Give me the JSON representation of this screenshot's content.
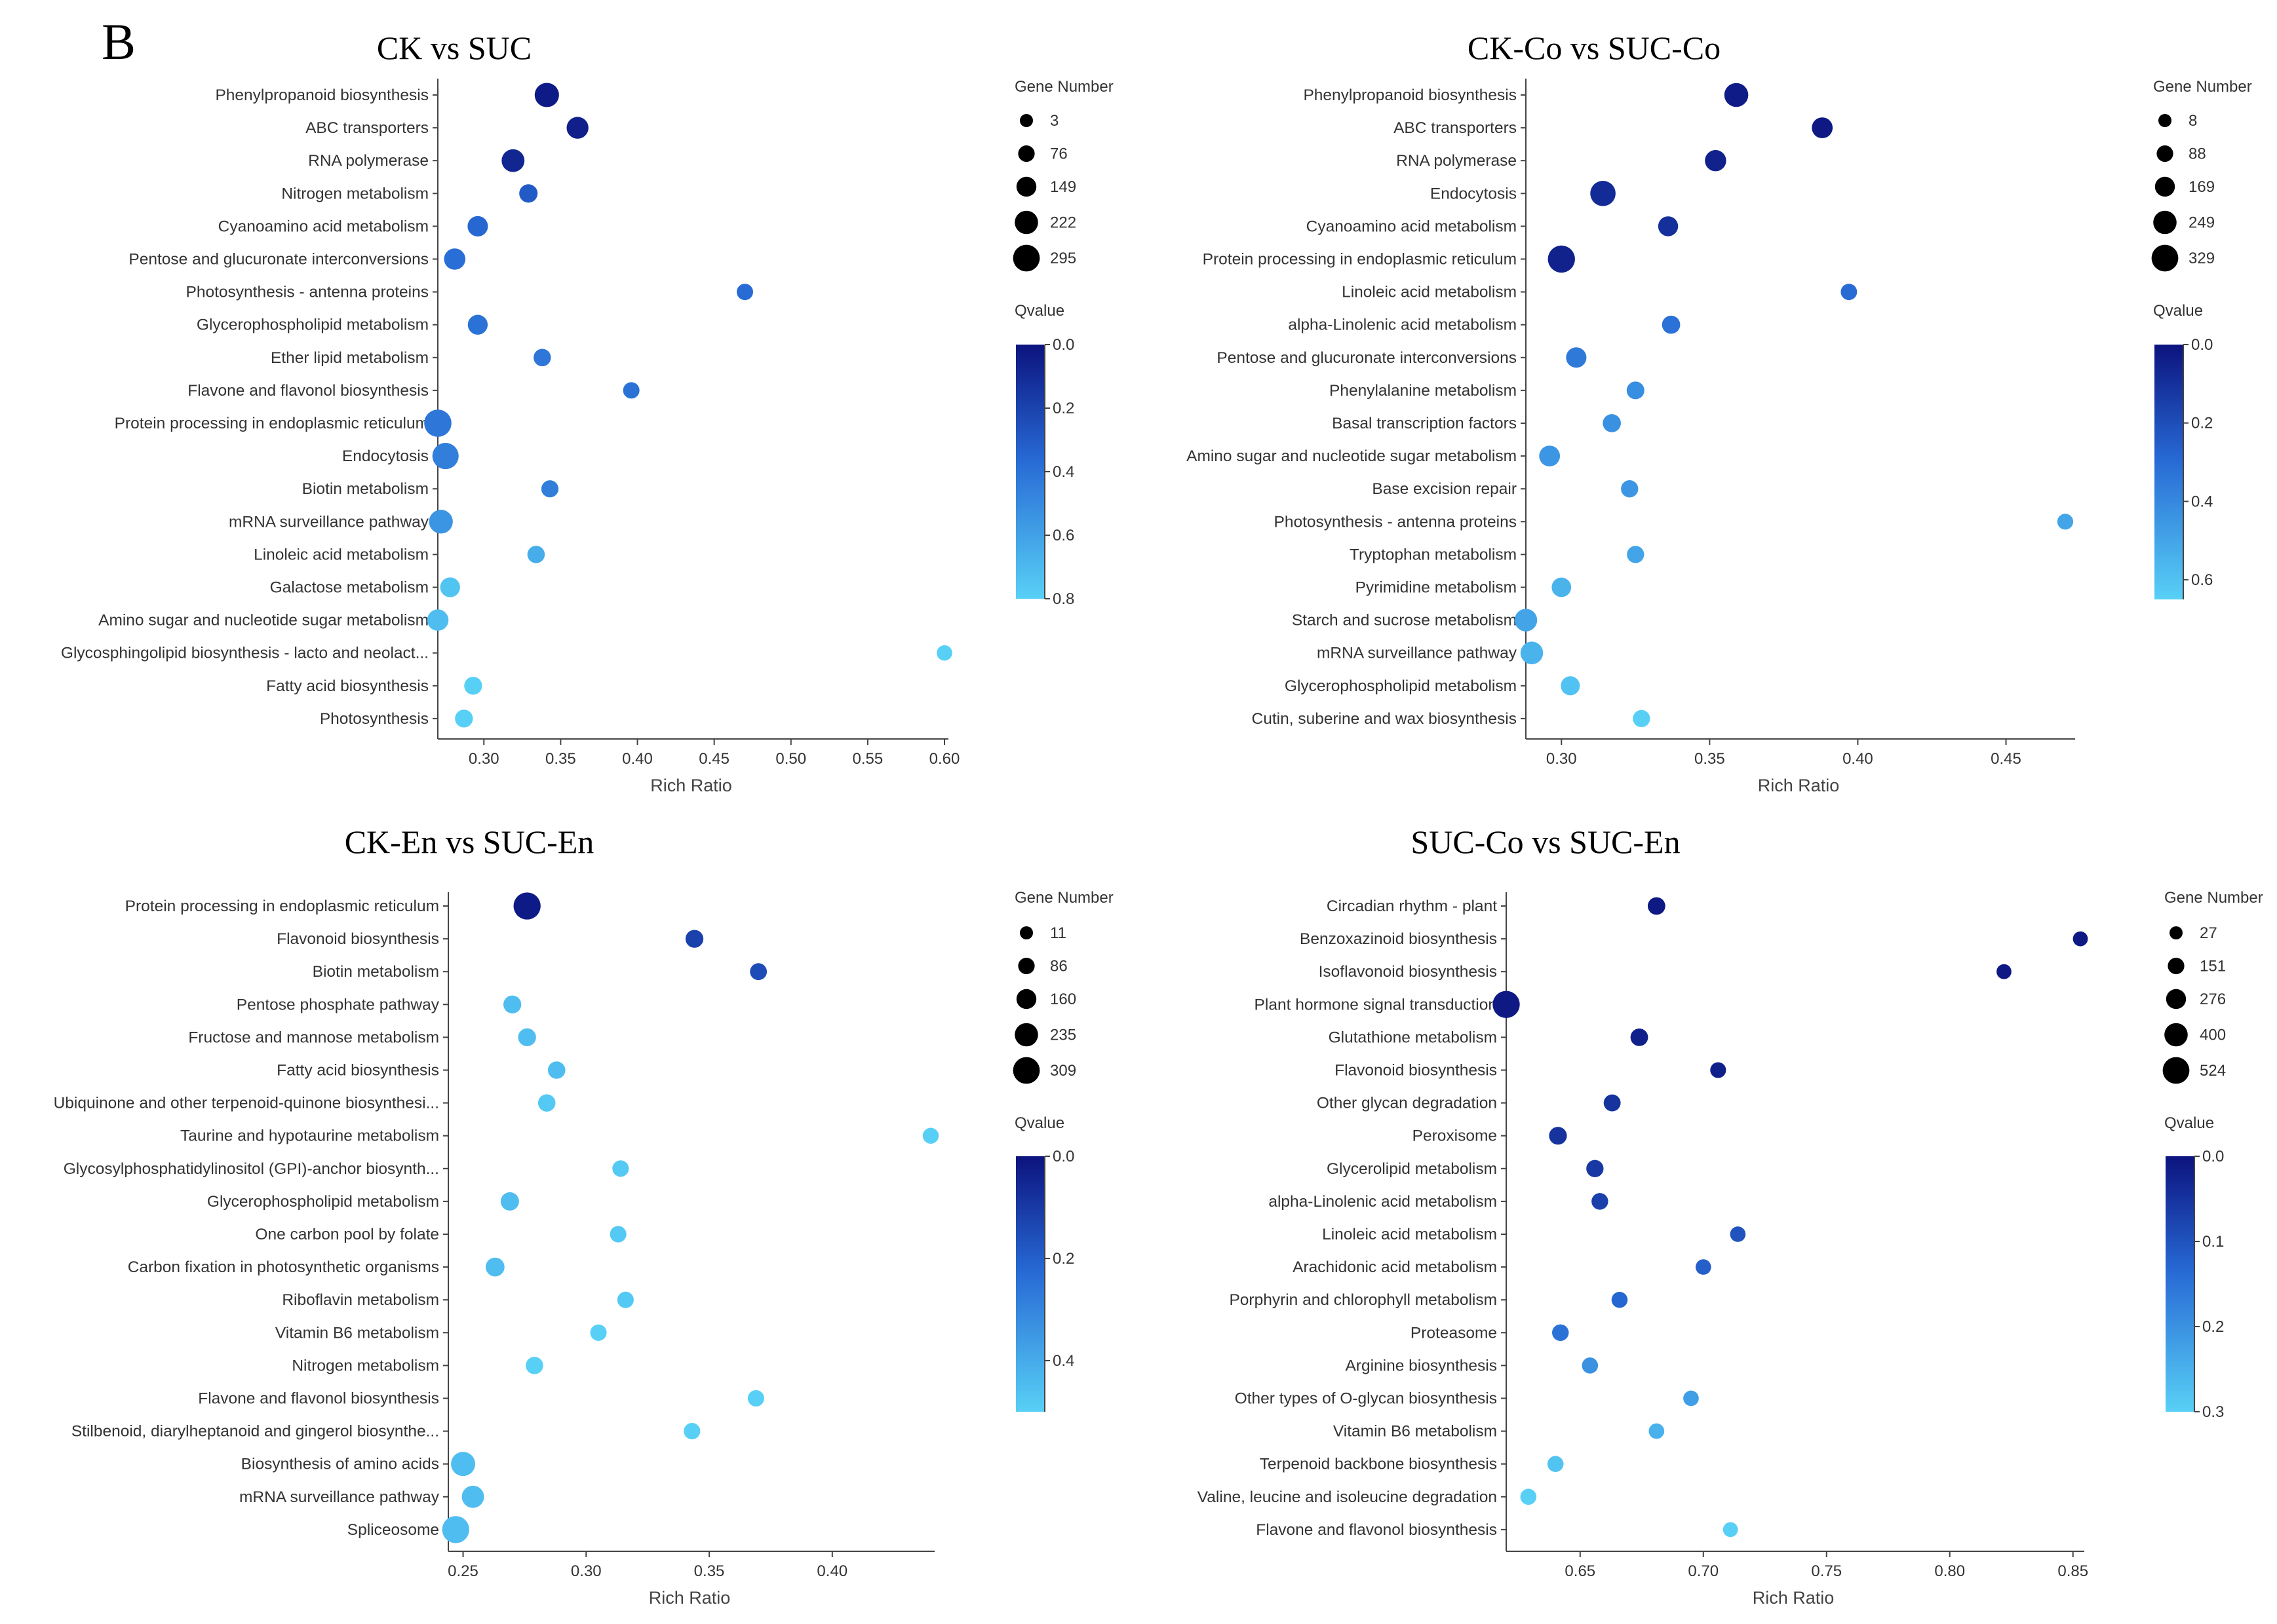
{
  "figure": {
    "panel_label": "B",
    "colors": {
      "qvalue_low": "#0c137e",
      "qvalue_mid": "#2769d4",
      "qvalue_high": "#58d0f6"
    }
  },
  "chart_data": [
    {
      "type": "scatter",
      "title": "CK vs SUC",
      "xlabel": "Rich Ratio",
      "xlim": [
        0.27,
        0.6
      ],
      "xticks": [
        0.3,
        0.35,
        0.4,
        0.45,
        0.5,
        0.55,
        0.6
      ],
      "xtick_labels": [
        "0.30",
        "0.35",
        "0.40",
        "0.45",
        "0.50",
        "0.55",
        "0.60"
      ],
      "size_legend": {
        "title": "Gene Number",
        "values": [
          3,
          76,
          149,
          222,
          295
        ]
      },
      "color_legend": {
        "title": "Qvalue",
        "min": 0.0,
        "max": 0.8,
        "ticks": [
          "0.0",
          "0.2",
          "0.4",
          "0.6",
          "0.8"
        ]
      },
      "points": [
        {
          "term": "Phenylpropanoid biosynthesis",
          "rich_ratio": 0.341,
          "gene_number": 230,
          "qvalue": 0.03
        },
        {
          "term": "ABC transporters",
          "rich_ratio": 0.361,
          "gene_number": 180,
          "qvalue": 0.05
        },
        {
          "term": "RNA polymerase",
          "rich_ratio": 0.319,
          "gene_number": 200,
          "qvalue": 0.08
        },
        {
          "term": "Nitrogen metabolism",
          "rich_ratio": 0.329,
          "gene_number": 110,
          "qvalue": 0.3
        },
        {
          "term": "Cyanoamino acid metabolism",
          "rich_ratio": 0.296,
          "gene_number": 150,
          "qvalue": 0.35
        },
        {
          "term": "Pentose and glucuronate interconversions",
          "rich_ratio": 0.281,
          "gene_number": 170,
          "qvalue": 0.38
        },
        {
          "term": "Photosynthesis - antenna proteins",
          "rich_ratio": 0.47,
          "gene_number": 70,
          "qvalue": 0.37
        },
        {
          "term": "Glycerophospholipid metabolism",
          "rich_ratio": 0.296,
          "gene_number": 140,
          "qvalue": 0.4
        },
        {
          "term": "Ether lipid metabolism",
          "rich_ratio": 0.338,
          "gene_number": 90,
          "qvalue": 0.42
        },
        {
          "term": "Flavone and flavonol biosynthesis",
          "rich_ratio": 0.396,
          "gene_number": 70,
          "qvalue": 0.4
        },
        {
          "term": "Protein processing in endoplasmic reticulum",
          "rich_ratio": 0.27,
          "gene_number": 290,
          "qvalue": 0.42
        },
        {
          "term": "Endocytosis",
          "rich_ratio": 0.275,
          "gene_number": 270,
          "qvalue": 0.45
        },
        {
          "term": "Biotin metabolism",
          "rich_ratio": 0.343,
          "gene_number": 85,
          "qvalue": 0.45
        },
        {
          "term": "mRNA surveillance pathway",
          "rich_ratio": 0.272,
          "gene_number": 220,
          "qvalue": 0.55
        },
        {
          "term": "Linoleic acid metabolism",
          "rich_ratio": 0.334,
          "gene_number": 90,
          "qvalue": 0.65
        },
        {
          "term": "Galactose metabolism",
          "rich_ratio": 0.278,
          "gene_number": 140,
          "qvalue": 0.75
        },
        {
          "term": "Amino sugar and nucleotide sugar metabolism",
          "rich_ratio": 0.27,
          "gene_number": 170,
          "qvalue": 0.72
        },
        {
          "term": "Glycosphingolipid biosynthesis - lacto and neolact...",
          "rich_ratio": 0.6,
          "gene_number": 50,
          "qvalue": 0.8
        },
        {
          "term": "Fatty acid biosynthesis",
          "rich_ratio": 0.293,
          "gene_number": 100,
          "qvalue": 0.8
        },
        {
          "term": "Photosynthesis",
          "rich_ratio": 0.287,
          "gene_number": 100,
          "qvalue": 0.8
        }
      ]
    },
    {
      "type": "scatter",
      "title": "CK-Co vs SUC-Co",
      "xlabel": "Rich Ratio",
      "xlim": [
        0.288,
        0.472
      ],
      "xticks": [
        0.3,
        0.35,
        0.4,
        0.45
      ],
      "xtick_labels": [
        "0.30",
        "0.35",
        "0.40",
        "0.45"
      ],
      "size_legend": {
        "title": "Gene Number",
        "values": [
          8,
          88,
          169,
          249,
          329
        ]
      },
      "color_legend": {
        "title": "Qvalue",
        "min": 0.0,
        "max": 0.65,
        "ticks": [
          "0.0",
          "0.2",
          "0.4",
          "0.6"
        ]
      },
      "points": [
        {
          "term": "Phenylpropanoid biosynthesis",
          "rich_ratio": 0.359,
          "gene_number": 250,
          "qvalue": 0.03
        },
        {
          "term": "ABC transporters",
          "rich_ratio": 0.388,
          "gene_number": 180,
          "qvalue": 0.02
        },
        {
          "term": "RNA polymerase",
          "rich_ratio": 0.352,
          "gene_number": 190,
          "qvalue": 0.05
        },
        {
          "term": "Endocytosis",
          "rich_ratio": 0.314,
          "gene_number": 280,
          "qvalue": 0.08
        },
        {
          "term": "Cyanoamino acid metabolism",
          "rich_ratio": 0.336,
          "gene_number": 160,
          "qvalue": 0.1
        },
        {
          "term": "Protein processing in endoplasmic reticulum",
          "rich_ratio": 0.3,
          "gene_number": 320,
          "qvalue": 0.05
        },
        {
          "term": "Linoleic acid metabolism",
          "rich_ratio": 0.397,
          "gene_number": 80,
          "qvalue": 0.3
        },
        {
          "term": "alpha-Linolenic acid metabolism",
          "rich_ratio": 0.337,
          "gene_number": 120,
          "qvalue": 0.32
        },
        {
          "term": "Pentose and glucuronate interconversions",
          "rich_ratio": 0.305,
          "gene_number": 170,
          "qvalue": 0.35
        },
        {
          "term": "Phenylalanine metabolism",
          "rich_ratio": 0.325,
          "gene_number": 110,
          "qvalue": 0.42
        },
        {
          "term": "Basal transcription factors",
          "rich_ratio": 0.317,
          "gene_number": 120,
          "qvalue": 0.43
        },
        {
          "term": "Amino sugar and nucleotide sugar metabolism",
          "rich_ratio": 0.296,
          "gene_number": 180,
          "qvalue": 0.45
        },
        {
          "term": "Base excision repair",
          "rich_ratio": 0.323,
          "gene_number": 100,
          "qvalue": 0.45
        },
        {
          "term": "Photosynthesis - antenna proteins",
          "rich_ratio": 0.47,
          "gene_number": 70,
          "qvalue": 0.5
        },
        {
          "term": "Tryptophan metabolism",
          "rich_ratio": 0.325,
          "gene_number": 100,
          "qvalue": 0.5
        },
        {
          "term": "Pyrimidine metabolism",
          "rich_ratio": 0.3,
          "gene_number": 150,
          "qvalue": 0.55
        },
        {
          "term": "Starch and sucrose metabolism",
          "rich_ratio": 0.288,
          "gene_number": 220,
          "qvalue": 0.5
        },
        {
          "term": "mRNA surveillance pathway",
          "rich_ratio": 0.29,
          "gene_number": 220,
          "qvalue": 0.55
        },
        {
          "term": "Glycerophospholipid metabolism",
          "rich_ratio": 0.303,
          "gene_number": 140,
          "qvalue": 0.6
        },
        {
          "term": "Cutin, suberine and wax biosynthesis",
          "rich_ratio": 0.327,
          "gene_number": 100,
          "qvalue": 0.65
        }
      ]
    },
    {
      "type": "scatter",
      "title": "CK-En vs SUC-En",
      "xlabel": "Rich Ratio",
      "xlim": [
        0.244,
        0.44
      ],
      "xticks": [
        0.25,
        0.3,
        0.35,
        0.4
      ],
      "xtick_labels": [
        "0.25",
        "0.30",
        "0.35",
        "0.40"
      ],
      "size_legend": {
        "title": "Gene Number",
        "values": [
          11,
          86,
          160,
          235,
          309
        ]
      },
      "color_legend": {
        "title": "Qvalue",
        "min": 0.0,
        "max": 0.5,
        "ticks": [
          "0.0",
          "0.2",
          "0.4"
        ]
      },
      "points": [
        {
          "term": "Protein processing in endoplasmic reticulum",
          "rich_ratio": 0.276,
          "gene_number": 300,
          "qvalue": 0.02
        },
        {
          "term": "Flavonoid biosynthesis",
          "rich_ratio": 0.344,
          "gene_number": 110,
          "qvalue": 0.12
        },
        {
          "term": "Biotin metabolism",
          "rich_ratio": 0.37,
          "gene_number": 90,
          "qvalue": 0.15
        },
        {
          "term": "Pentose phosphate pathway",
          "rich_ratio": 0.27,
          "gene_number": 110,
          "qvalue": 0.45
        },
        {
          "term": "Fructose and mannose metabolism",
          "rich_ratio": 0.276,
          "gene_number": 110,
          "qvalue": 0.45
        },
        {
          "term": "Fatty acid biosynthesis",
          "rich_ratio": 0.288,
          "gene_number": 100,
          "qvalue": 0.45
        },
        {
          "term": "Ubiquinone and other terpenoid-quinone biosynthesi...",
          "rich_ratio": 0.284,
          "gene_number": 100,
          "qvalue": 0.48
        },
        {
          "term": "Taurine and hypotaurine metabolism",
          "rich_ratio": 0.44,
          "gene_number": 70,
          "qvalue": 0.5
        },
        {
          "term": "Glycosylphosphatidylinositol (GPI)-anchor biosynth...",
          "rich_ratio": 0.314,
          "gene_number": 80,
          "qvalue": 0.48
        },
        {
          "term": "Glycerophospholipid metabolism",
          "rich_ratio": 0.269,
          "gene_number": 120,
          "qvalue": 0.45
        },
        {
          "term": "One carbon pool by folate",
          "rich_ratio": 0.313,
          "gene_number": 80,
          "qvalue": 0.48
        },
        {
          "term": "Carbon fixation in photosynthetic organisms",
          "rich_ratio": 0.263,
          "gene_number": 130,
          "qvalue": 0.45
        },
        {
          "term": "Riboflavin metabolism",
          "rich_ratio": 0.316,
          "gene_number": 80,
          "qvalue": 0.48
        },
        {
          "term": "Vitamin B6 metabolism",
          "rich_ratio": 0.305,
          "gene_number": 80,
          "qvalue": 0.5
        },
        {
          "term": "Nitrogen metabolism",
          "rich_ratio": 0.279,
          "gene_number": 100,
          "qvalue": 0.5
        },
        {
          "term": "Flavone and flavonol biosynthesis",
          "rich_ratio": 0.369,
          "gene_number": 80,
          "qvalue": 0.5
        },
        {
          "term": "Stilbenoid, diarylheptanoid and gingerol biosynthe...",
          "rich_ratio": 0.343,
          "gene_number": 80,
          "qvalue": 0.5
        },
        {
          "term": "Biosynthesis of amino acids",
          "rich_ratio": 0.25,
          "gene_number": 240,
          "qvalue": 0.45
        },
        {
          "term": "mRNA surveillance pathway",
          "rich_ratio": 0.254,
          "gene_number": 200,
          "qvalue": 0.45
        },
        {
          "term": "Spliceosome",
          "rich_ratio": 0.247,
          "gene_number": 300,
          "qvalue": 0.45
        }
      ]
    },
    {
      "type": "scatter",
      "title": "SUC-Co vs SUC-En",
      "xlabel": "Rich Ratio",
      "xlim": [
        0.62,
        0.853
      ],
      "xticks": [
        0.65,
        0.7,
        0.75,
        0.8,
        0.85
      ],
      "xtick_labels": [
        "0.65",
        "0.70",
        "0.75",
        "0.80",
        "0.85"
      ],
      "size_legend": {
        "title": "Gene Number",
        "values": [
          27,
          151,
          276,
          400,
          524
        ]
      },
      "color_legend": {
        "title": "Qvalue",
        "min": 0.0,
        "max": 0.3,
        "ticks": [
          "0.0",
          "0.1",
          "0.2",
          "0.3"
        ]
      },
      "points": [
        {
          "term": "Circadian rhythm - plant",
          "rich_ratio": 0.681,
          "gene_number": 180,
          "qvalue": 0.01
        },
        {
          "term": "Benzoxazinoid biosynthesis",
          "rich_ratio": 0.853,
          "gene_number": 90,
          "qvalue": 0.01
        },
        {
          "term": "Isoflavonoid biosynthesis",
          "rich_ratio": 0.822,
          "gene_number": 90,
          "qvalue": 0.01
        },
        {
          "term": "Plant hormone signal transduction",
          "rich_ratio": 0.62,
          "gene_number": 510,
          "qvalue": 0.01
        },
        {
          "term": "Glutathione metabolism",
          "rich_ratio": 0.674,
          "gene_number": 180,
          "qvalue": 0.02
        },
        {
          "term": "Flavonoid biosynthesis",
          "rich_ratio": 0.706,
          "gene_number": 120,
          "qvalue": 0.02
        },
        {
          "term": "Other glycan degradation",
          "rich_ratio": 0.663,
          "gene_number": 160,
          "qvalue": 0.05
        },
        {
          "term": "Peroxisome",
          "rich_ratio": 0.641,
          "gene_number": 190,
          "qvalue": 0.05
        },
        {
          "term": "Glycerolipid metabolism",
          "rich_ratio": 0.656,
          "gene_number": 170,
          "qvalue": 0.06
        },
        {
          "term": "alpha-Linolenic acid metabolism",
          "rich_ratio": 0.658,
          "gene_number": 150,
          "qvalue": 0.07
        },
        {
          "term": "Linoleic acid metabolism",
          "rich_ratio": 0.714,
          "gene_number": 110,
          "qvalue": 0.1
        },
        {
          "term": "Arachidonic acid metabolism",
          "rich_ratio": 0.7,
          "gene_number": 110,
          "qvalue": 0.12
        },
        {
          "term": "Porphyrin and chlorophyll metabolism",
          "rich_ratio": 0.666,
          "gene_number": 130,
          "qvalue": 0.13
        },
        {
          "term": "Proteasome",
          "rich_ratio": 0.642,
          "gene_number": 150,
          "qvalue": 0.15
        },
        {
          "term": "Arginine biosynthesis",
          "rich_ratio": 0.654,
          "gene_number": 130,
          "qvalue": 0.2
        },
        {
          "term": "Other types of O-glycan biosynthesis",
          "rich_ratio": 0.695,
          "gene_number": 110,
          "qvalue": 0.22
        },
        {
          "term": "Vitamin B6 metabolism",
          "rich_ratio": 0.681,
          "gene_number": 110,
          "qvalue": 0.25
        },
        {
          "term": "Terpenoid backbone biosynthesis",
          "rich_ratio": 0.64,
          "gene_number": 130,
          "qvalue": 0.28
        },
        {
          "term": "Valine, leucine and isoleucine degradation",
          "rich_ratio": 0.629,
          "gene_number": 130,
          "qvalue": 0.3
        },
        {
          "term": "Flavone and flavonol biosynthesis",
          "rich_ratio": 0.711,
          "gene_number": 90,
          "qvalue": 0.3
        }
      ]
    }
  ]
}
